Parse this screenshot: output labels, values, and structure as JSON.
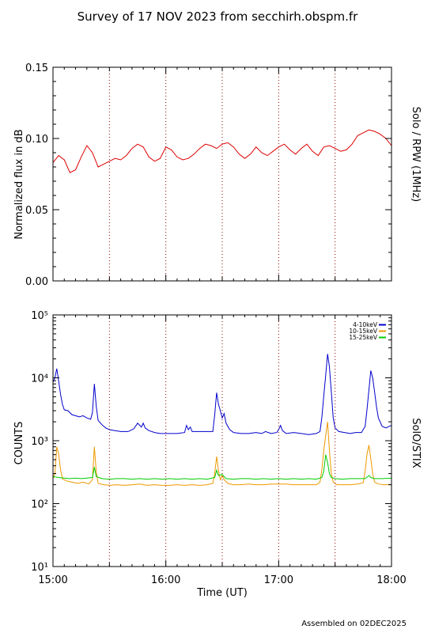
{
  "title": "Survey of 17 NOV 2023 from secchirh.obspm.fr",
  "footer": "Assembled on 02DEC2025",
  "x_axis": {
    "label": "Time (UT)",
    "ticks": [
      {
        "t": 0,
        "label": "15:00"
      },
      {
        "t": 60,
        "label": "16:00"
      },
      {
        "t": 120,
        "label": "17:00"
      },
      {
        "t": 180,
        "label": "18:00"
      }
    ],
    "range_minutes": [
      0,
      180
    ],
    "dotted_markers_minutes": [
      30,
      60,
      90,
      120,
      150
    ]
  },
  "chart_data": [
    {
      "type": "line",
      "name": "rpw",
      "ylabel": "Normalized flux in dB",
      "right_label": "Solo / RPW (1MHz)",
      "ylim": [
        0,
        0.15
      ],
      "yticks": [
        "0.00",
        "0.05",
        "0.10",
        "0.15"
      ],
      "color": "#dd0000",
      "x": [
        0,
        3,
        6,
        9,
        12,
        15,
        18,
        21,
        24,
        27,
        30,
        33,
        36,
        39,
        42,
        45,
        48,
        51,
        54,
        57,
        60,
        63,
        66,
        69,
        72,
        75,
        78,
        81,
        84,
        87,
        90,
        93,
        96,
        99,
        102,
        105,
        108,
        111,
        114,
        117,
        120,
        123,
        126,
        129,
        132,
        135,
        138,
        141,
        144,
        147,
        150,
        153,
        156,
        159,
        162,
        165,
        168,
        171,
        174,
        177,
        180
      ],
      "y": [
        0.083,
        0.088,
        0.085,
        0.076,
        0.078,
        0.087,
        0.095,
        0.09,
        0.08,
        0.082,
        0.084,
        0.086,
        0.085,
        0.088,
        0.093,
        0.096,
        0.094,
        0.087,
        0.084,
        0.086,
        0.094,
        0.092,
        0.087,
        0.085,
        0.086,
        0.089,
        0.093,
        0.096,
        0.095,
        0.093,
        0.096,
        0.097,
        0.094,
        0.089,
        0.086,
        0.089,
        0.094,
        0.09,
        0.088,
        0.091,
        0.094,
        0.096,
        0.092,
        0.089,
        0.093,
        0.096,
        0.091,
        0.088,
        0.094,
        0.095,
        0.093,
        0.091,
        0.092,
        0.096,
        0.102,
        0.104,
        0.106,
        0.105,
        0.103,
        0.1,
        0.095
      ]
    },
    {
      "type": "line",
      "name": "stix",
      "ylabel": "COUNTS",
      "right_label": "SolO/STIX",
      "log_y": true,
      "ylim": [
        10,
        100000
      ],
      "yticks": [
        "10¹",
        "10²",
        "10³",
        "10⁴",
        "10⁵"
      ],
      "series": [
        {
          "name": "4-10keV",
          "color": "#0000cc",
          "points": [
            [
              0,
              8500
            ],
            [
              1,
              10000
            ],
            [
              2,
              14000
            ],
            [
              3,
              9000
            ],
            [
              4,
              5500
            ],
            [
              5,
              3800
            ],
            [
              6,
              3100
            ],
            [
              8,
              3000
            ],
            [
              10,
              2600
            ],
            [
              12,
              2500
            ],
            [
              14,
              2400
            ],
            [
              16,
              2500
            ],
            [
              18,
              2300
            ],
            [
              20,
              2200
            ],
            [
              21,
              2800
            ],
            [
              22,
              8000
            ],
            [
              23,
              3500
            ],
            [
              24,
              2100
            ],
            [
              26,
              1800
            ],
            [
              28,
              1600
            ],
            [
              30,
              1500
            ],
            [
              33,
              1450
            ],
            [
              36,
              1400
            ],
            [
              40,
              1400
            ],
            [
              43,
              1550
            ],
            [
              45,
              1900
            ],
            [
              47,
              1650
            ],
            [
              48,
              1900
            ],
            [
              49,
              1600
            ],
            [
              51,
              1450
            ],
            [
              54,
              1350
            ],
            [
              57,
              1300
            ],
            [
              60,
              1300
            ],
            [
              63,
              1300
            ],
            [
              66,
              1300
            ],
            [
              70,
              1350
            ],
            [
              71,
              1750
            ],
            [
              72,
              1500
            ],
            [
              73,
              1650
            ],
            [
              74,
              1400
            ],
            [
              78,
              1400
            ],
            [
              82,
              1400
            ],
            [
              85,
              1400
            ],
            [
              86,
              2600
            ],
            [
              87,
              5800
            ],
            [
              88,
              3800
            ],
            [
              89,
              3000
            ],
            [
              90,
              2300
            ],
            [
              91,
              2700
            ],
            [
              92,
              1900
            ],
            [
              94,
              1500
            ],
            [
              96,
              1350
            ],
            [
              100,
              1300
            ],
            [
              104,
              1300
            ],
            [
              108,
              1350
            ],
            [
              111,
              1300
            ],
            [
              113,
              1400
            ],
            [
              116,
              1300
            ],
            [
              119,
              1350
            ],
            [
              120,
              1500
            ],
            [
              121,
              1750
            ],
            [
              122,
              1450
            ],
            [
              124,
              1300
            ],
            [
              128,
              1350
            ],
            [
              132,
              1300
            ],
            [
              136,
              1250
            ],
            [
              140,
              1300
            ],
            [
              142,
              1400
            ],
            [
              143,
              2400
            ],
            [
              144,
              5200
            ],
            [
              145,
              11000
            ],
            [
              146,
              24000
            ],
            [
              147,
              15000
            ],
            [
              148,
              6000
            ],
            [
              149,
              2300
            ],
            [
              150,
              1600
            ],
            [
              152,
              1400
            ],
            [
              155,
              1350
            ],
            [
              158,
              1300
            ],
            [
              161,
              1350
            ],
            [
              164,
              1350
            ],
            [
              166,
              1700
            ],
            [
              167,
              3200
            ],
            [
              168,
              6500
            ],
            [
              169,
              13000
            ],
            [
              170,
              10000
            ],
            [
              171,
              6000
            ],
            [
              172,
              3500
            ],
            [
              173,
              2300
            ],
            [
              175,
              1700
            ],
            [
              177,
              1600
            ],
            [
              179,
              1700
            ],
            [
              180,
              1750
            ]
          ]
        },
        {
          "name": "10-15keV",
          "color": "#ee9900",
          "points": [
            [
              0,
              250
            ],
            [
              1,
              300
            ],
            [
              2,
              800
            ],
            [
              3,
              620
            ],
            [
              4,
              350
            ],
            [
              5,
              250
            ],
            [
              7,
              230
            ],
            [
              10,
              220
            ],
            [
              13,
              210
            ],
            [
              16,
              220
            ],
            [
              19,
              205
            ],
            [
              21,
              240
            ],
            [
              22,
              800
            ],
            [
              23,
              320
            ],
            [
              24,
              210
            ],
            [
              27,
              200
            ],
            [
              30,
              195
            ],
            [
              34,
              200
            ],
            [
              38,
              195
            ],
            [
              42,
              200
            ],
            [
              46,
              205
            ],
            [
              50,
              195
            ],
            [
              54,
              200
            ],
            [
              58,
              195
            ],
            [
              62,
              195
            ],
            [
              66,
              200
            ],
            [
              70,
              195
            ],
            [
              74,
              200
            ],
            [
              78,
              195
            ],
            [
              82,
              200
            ],
            [
              85,
              210
            ],
            [
              86,
              300
            ],
            [
              87,
              560
            ],
            [
              88,
              340
            ],
            [
              89,
              240
            ],
            [
              90,
              280
            ],
            [
              91,
              240
            ],
            [
              93,
              210
            ],
            [
              96,
              200
            ],
            [
              100,
              200
            ],
            [
              104,
              205
            ],
            [
              108,
              200
            ],
            [
              112,
              200
            ],
            [
              116,
              205
            ],
            [
              120,
              205
            ],
            [
              124,
              205
            ],
            [
              128,
              200
            ],
            [
              132,
              200
            ],
            [
              136,
              200
            ],
            [
              140,
              200
            ],
            [
              142,
              220
            ],
            [
              143,
              350
            ],
            [
              144,
              700
            ],
            [
              145,
              1200
            ],
            [
              146,
              2000
            ],
            [
              147,
              700
            ],
            [
              148,
              300
            ],
            [
              149,
              220
            ],
            [
              151,
              200
            ],
            [
              155,
              200
            ],
            [
              158,
              200
            ],
            [
              162,
              205
            ],
            [
              165,
              215
            ],
            [
              166,
              330
            ],
            [
              167,
              620
            ],
            [
              168,
              850
            ],
            [
              169,
              520
            ],
            [
              170,
              300
            ],
            [
              171,
              220
            ],
            [
              173,
              205
            ],
            [
              176,
              200
            ],
            [
              180,
              200
            ]
          ]
        },
        {
          "name": "15-25keV",
          "color": "#00cc00",
          "points": [
            [
              0,
              270
            ],
            [
              3,
              260
            ],
            [
              6,
              255
            ],
            [
              9,
              250
            ],
            [
              12,
              255
            ],
            [
              15,
              250
            ],
            [
              18,
              255
            ],
            [
              21,
              260
            ],
            [
              22,
              380
            ],
            [
              23,
              270
            ],
            [
              26,
              250
            ],
            [
              30,
              245
            ],
            [
              34,
              250
            ],
            [
              38,
              250
            ],
            [
              42,
              245
            ],
            [
              46,
              250
            ],
            [
              50,
              245
            ],
            [
              54,
              250
            ],
            [
              58,
              245
            ],
            [
              62,
              250
            ],
            [
              66,
              245
            ],
            [
              70,
              250
            ],
            [
              74,
              245
            ],
            [
              78,
              250
            ],
            [
              82,
              245
            ],
            [
              86,
              260
            ],
            [
              87,
              340
            ],
            [
              88,
              280
            ],
            [
              90,
              290
            ],
            [
              92,
              250
            ],
            [
              96,
              245
            ],
            [
              100,
              250
            ],
            [
              104,
              250
            ],
            [
              108,
              245
            ],
            [
              112,
              250
            ],
            [
              116,
              245
            ],
            [
              120,
              250
            ],
            [
              124,
              245
            ],
            [
              128,
              250
            ],
            [
              132,
              245
            ],
            [
              136,
              250
            ],
            [
              140,
              245
            ],
            [
              143,
              260
            ],
            [
              144,
              330
            ],
            [
              145,
              600
            ],
            [
              146,
              450
            ],
            [
              147,
              300
            ],
            [
              148,
              260
            ],
            [
              150,
              250
            ],
            [
              154,
              245
            ],
            [
              158,
              250
            ],
            [
              162,
              250
            ],
            [
              166,
              250
            ],
            [
              168,
              280
            ],
            [
              169,
              260
            ],
            [
              171,
              250
            ],
            [
              175,
              250
            ],
            [
              180,
              255
            ]
          ]
        }
      ]
    }
  ]
}
